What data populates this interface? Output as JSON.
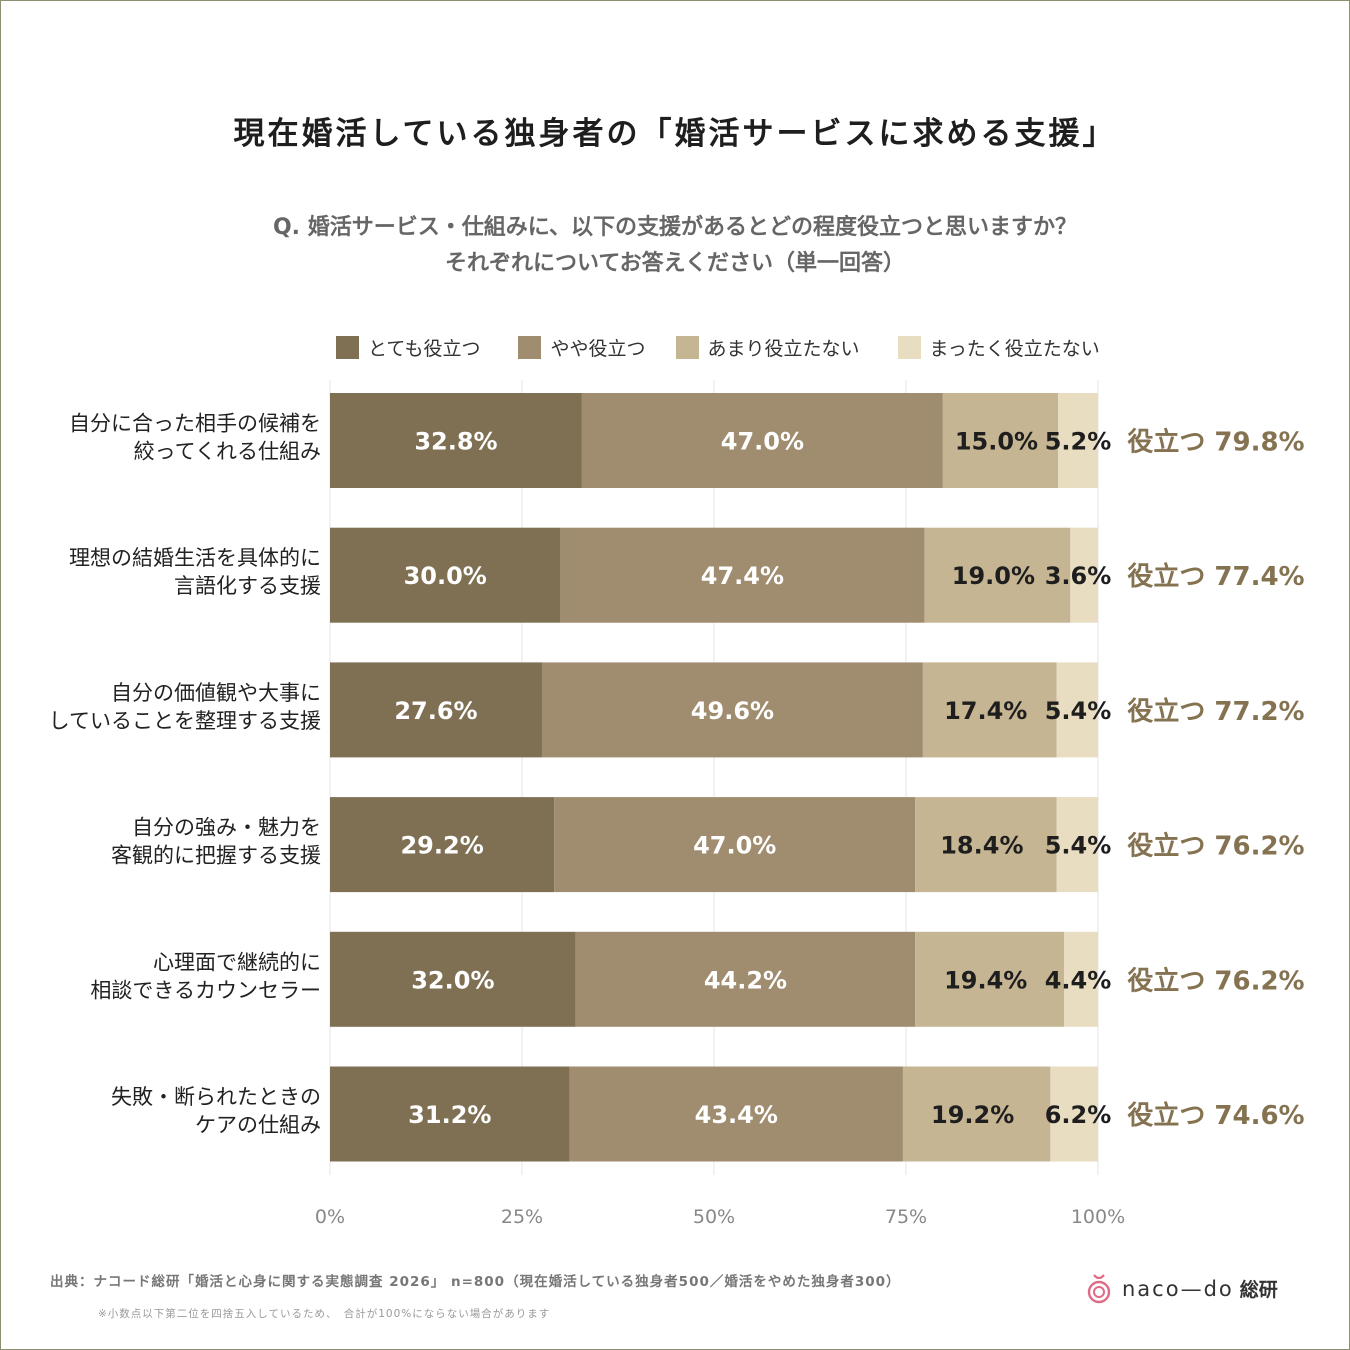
{
  "title": "現在婚活している独身者の「婚活サービスに求める支援」",
  "question_line1": "Q. 婚活サービス・仕組みに、以下の支援があるとどの程度役立つと思いますか？",
  "question_line2": "それぞれについてお答えください（単一回答）",
  "source": "出典：ナコード総研「婚活と心身に関する実態調査 2026」 n=800（現在婚活している独身者500／婚活をやめた独身者300）",
  "note": "※小数点以下第二位を四捨五入しているため、　合計が100%にならない場合があります",
  "logo": {
    "text": "naco—do",
    "suffix": "総研"
  },
  "colors": {
    "very_useful": "#7f7053",
    "somewhat_useful": "#a08d6f",
    "not_very_useful": "#c6b593",
    "not_useful": "#e8dcc1",
    "total_label": "#857250",
    "logo_mark": "#e06a86"
  },
  "chart_data": {
    "type": "bar",
    "orientation": "horizontal",
    "stacked": true,
    "categories": [
      [
        "自分に合った相手の候補を",
        "絞ってくれる仕組み"
      ],
      [
        "理想の結婚生活を具体的に",
        "言語化する支援"
      ],
      [
        "自分の価値観や大事に",
        "していることを整理する支援"
      ],
      [
        "自分の強み・魅力を",
        "客観的に把握する支援"
      ],
      [
        "心理面で継続的に",
        "相談できるカウンセラー"
      ],
      [
        "失敗・断られたときの",
        "ケアの仕組み"
      ]
    ],
    "series": [
      {
        "name": "とても役立つ",
        "values": [
          32.8,
          30.0,
          27.6,
          29.2,
          32.0,
          31.2
        ]
      },
      {
        "name": "やや役立つ",
        "values": [
          47.0,
          47.4,
          49.6,
          47.0,
          44.2,
          43.4
        ]
      },
      {
        "name": "あまり役立たない",
        "values": [
          15.0,
          19.0,
          17.4,
          18.4,
          19.4,
          19.2
        ]
      },
      {
        "name": "まったく役立たない",
        "values": [
          5.2,
          3.6,
          5.4,
          5.4,
          4.4,
          6.2
        ]
      }
    ],
    "totals": [
      "役立つ 79.8%",
      "役立つ 77.4%",
      "役立つ 77.2%",
      "役立つ 76.2%",
      "役立つ 76.2%",
      "役立つ 74.6%"
    ],
    "x_ticks": [
      "0%",
      "25%",
      "50%",
      "75%",
      "100%"
    ],
    "xlim": [
      0,
      100
    ],
    "grid": true,
    "legend": "top"
  }
}
